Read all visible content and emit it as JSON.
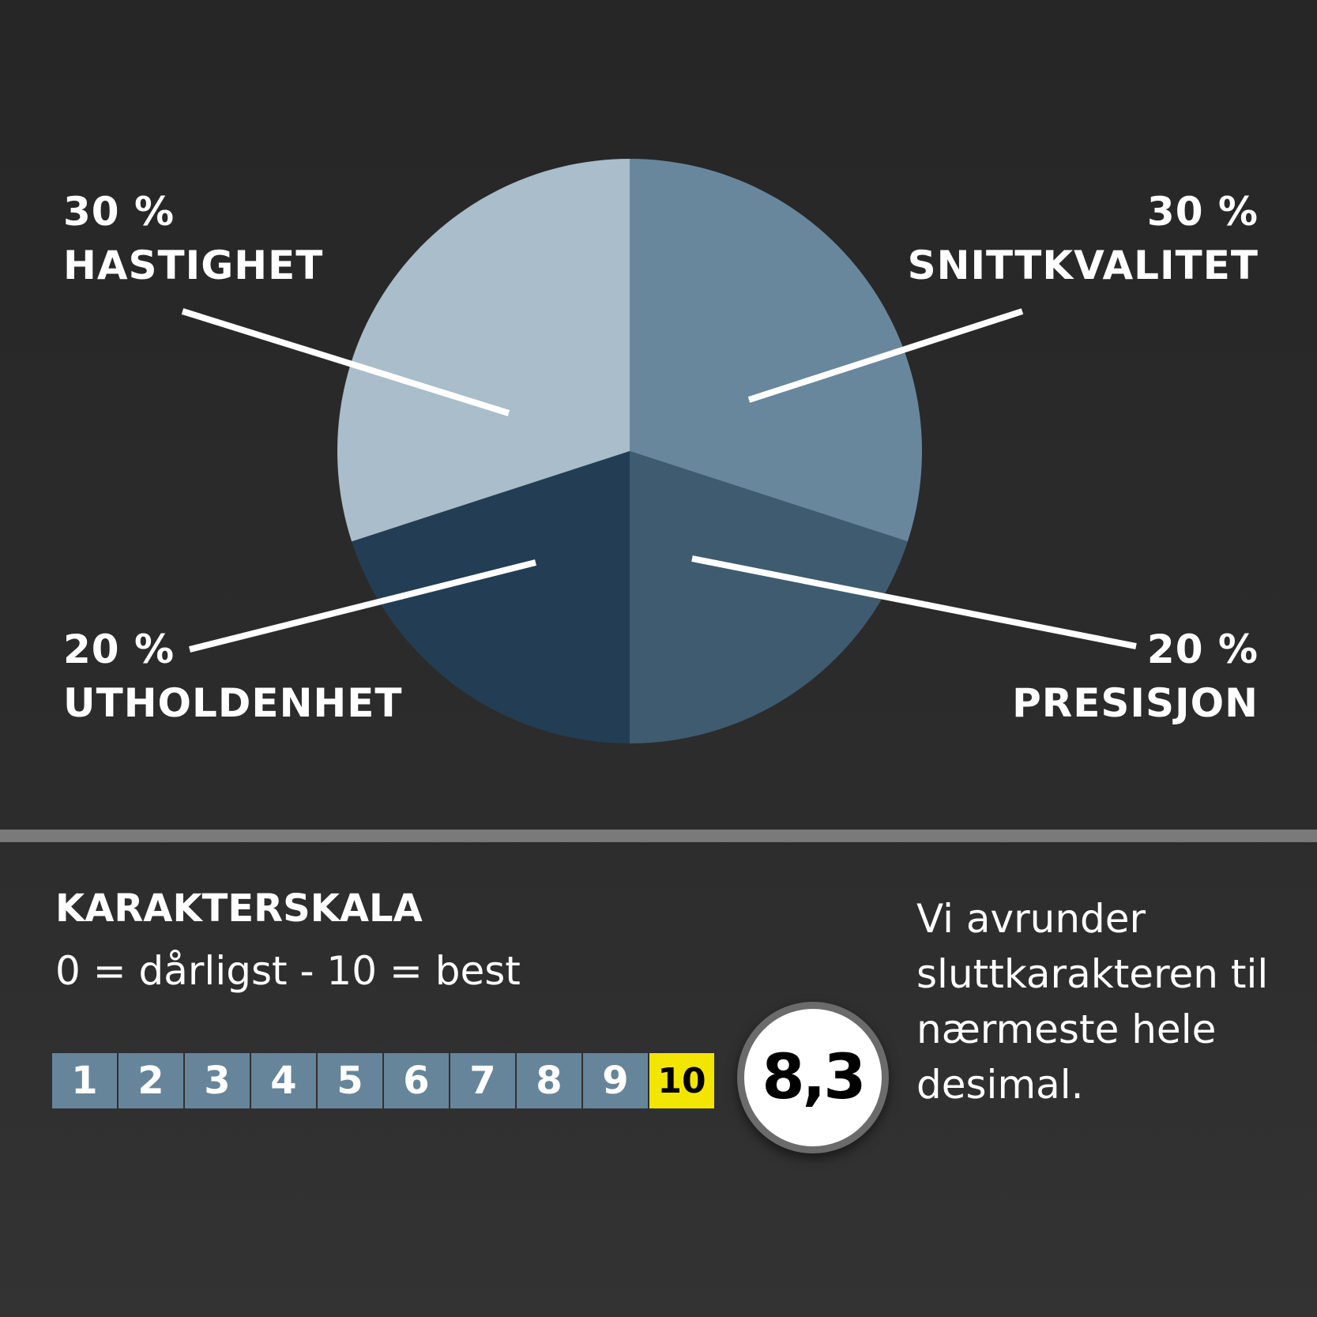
{
  "chart_data": {
    "type": "pie",
    "title": "",
    "slices": [
      {
        "name": "SNITTKVALITET",
        "value": 30,
        "label": "30 %",
        "color": "#69879c"
      },
      {
        "name": "PRESISJON",
        "value": 20,
        "label": "20 %",
        "color": "#3f5b70"
      },
      {
        "name": "UTHOLDENHET",
        "value": 20,
        "label": "20 %",
        "color": "#233d54"
      },
      {
        "name": "HASTIGHET",
        "value": 30,
        "label": "30 %",
        "color": "#a9bdca"
      }
    ],
    "start_angle_deg": 0,
    "direction": "clockwise"
  },
  "scale": {
    "title": "KARAKTERSKALA",
    "subtitle": "0 = dårligst - 10 = best",
    "values": [
      "1",
      "2",
      "3",
      "4",
      "5",
      "6",
      "7",
      "8",
      "9",
      "10"
    ],
    "highlight": "10",
    "highlight_color": "#f2e600"
  },
  "result": "8,3",
  "note": "Vi avrunder sluttkarakteren til nærmeste hele desimal."
}
